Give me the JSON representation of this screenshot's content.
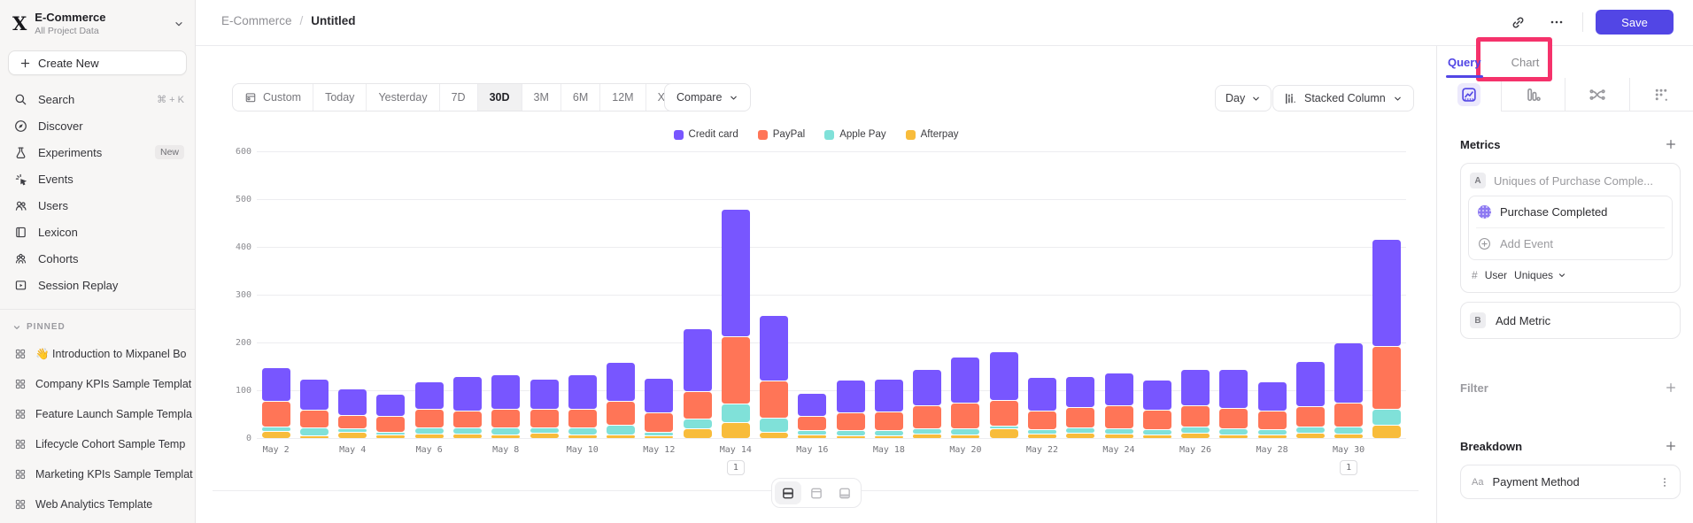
{
  "colors": {
    "accent": "#5246E5",
    "annotation_pink": "#F5326B",
    "save_button": "#5246E5"
  },
  "sidebar": {
    "project": {
      "name": "E-Commerce",
      "subtitle": "All Project Data",
      "logo_icon": "mixpanel-logo"
    },
    "create_new_label": "Create New",
    "nav": [
      {
        "label": "Search",
        "icon": "search-icon",
        "shortcut": "⌘ + K"
      },
      {
        "label": "Discover",
        "icon": "discover-icon"
      },
      {
        "label": "Experiments",
        "icon": "experiments-icon",
        "badge": "New"
      },
      {
        "label": "Events",
        "icon": "events-icon"
      },
      {
        "label": "Users",
        "icon": "users-icon"
      },
      {
        "label": "Lexicon",
        "icon": "lexicon-icon"
      },
      {
        "label": "Cohorts",
        "icon": "cohorts-icon"
      },
      {
        "label": "Session Replay",
        "icon": "session-replay-icon"
      }
    ],
    "pinned": {
      "header": "PINNED",
      "items": [
        {
          "label": "👋 Introduction to Mixpanel Bo",
          "icon": "board-grid-icon"
        },
        {
          "label": "Company KPIs Sample Templat",
          "icon": "board-grid-icon"
        },
        {
          "label": "Feature Launch Sample Templa",
          "icon": "board-grid-icon"
        },
        {
          "label": "Lifecycle Cohort Sample Temp",
          "icon": "board-grid-icon"
        },
        {
          "label": "Marketing KPIs Sample Templat",
          "icon": "board-grid-icon"
        },
        {
          "label": "Web Analytics Template",
          "icon": "board-grid-icon"
        }
      ]
    }
  },
  "header": {
    "breadcrumb": {
      "root": "E-Commerce",
      "separator": "/",
      "current": "Untitled"
    },
    "actions": {
      "link_icon": "copy-link-icon",
      "more_icon": "ellipsis-icon",
      "save_label": "Save"
    }
  },
  "toolbar": {
    "ranges": [
      {
        "label": "Custom",
        "icon": "calendar-icon"
      },
      {
        "label": "Today"
      },
      {
        "label": "Yesterday"
      },
      {
        "label": "7D"
      },
      {
        "label": "30D",
        "active": true
      },
      {
        "label": "3M"
      },
      {
        "label": "6M"
      },
      {
        "label": "12M"
      },
      {
        "label": "XTD",
        "chevron": true
      }
    ],
    "compare_label": "Compare",
    "granularity_label": "Day",
    "chart_type_label": "Stacked Column",
    "chart_type_icon": "stacked-column-icon"
  },
  "right_panel": {
    "tabs": {
      "query": "Query",
      "chart": "Chart"
    },
    "metrics": {
      "title": "Metrics",
      "row_a": {
        "chip": "A",
        "placeholder": "Uniques of Purchase Comple..."
      },
      "event_name": "Purchase Completed",
      "add_event_label": "Add Event",
      "aggregation": {
        "hash": "#",
        "entity": "User",
        "method": "Uniques"
      },
      "row_b": {
        "chip": "B",
        "label": "Add Metric"
      }
    },
    "filter": {
      "title": "Filter"
    },
    "breakdown": {
      "title": "Breakdown",
      "property": {
        "prefix": "Aa",
        "name": "Payment Method"
      }
    }
  },
  "chart_data": {
    "type": "bar",
    "stacked": true,
    "x": [
      "May 2",
      "May 3",
      "May 4",
      "May 5",
      "May 6",
      "May 7",
      "May 8",
      "May 9",
      "May 10",
      "May 11",
      "May 12",
      "May 13",
      "May 14",
      "May 15",
      "May 16",
      "May 17",
      "May 18",
      "May 19",
      "May 20",
      "May 21",
      "May 22",
      "May 23",
      "May 24",
      "May 25",
      "May 26",
      "May 27",
      "May 28",
      "May 29",
      "May 30",
      "May 31"
    ],
    "series": [
      {
        "name": "Afterpay",
        "color": "#F8BC3B",
        "values": [
          15,
          6,
          13,
          8,
          10,
          10,
          8,
          12,
          7,
          8,
          5,
          20,
          33,
          13,
          8,
          6,
          5,
          10,
          8,
          20,
          10,
          12,
          10,
          8,
          12,
          8,
          8,
          12,
          10,
          28
        ]
      },
      {
        "name": "Apple Pay",
        "color": "#80E1D9",
        "values": [
          10,
          16,
          8,
          5,
          12,
          13,
          15,
          10,
          15,
          20,
          7,
          20,
          40,
          29,
          8,
          10,
          12,
          10,
          12,
          6,
          8,
          10,
          10,
          10,
          12,
          12,
          10,
          12,
          15,
          34
        ]
      },
      {
        "name": "PayPal",
        "color": "#FF7557",
        "values": [
          53,
          38,
          27,
          32,
          40,
          34,
          39,
          40,
          40,
          49,
          41,
          58,
          140,
          78,
          30,
          38,
          38,
          48,
          55,
          54,
          40,
          43,
          48,
          42,
          44,
          43,
          39,
          42,
          50,
          131
        ]
      },
      {
        "name": "Credit card",
        "color": "#7856FF",
        "values": [
          70,
          65,
          55,
          47,
          57,
          72,
          71,
          63,
          71,
          83,
          72,
          132,
          267,
          138,
          49,
          68,
          68,
          76,
          95,
          101,
          69,
          65,
          69,
          62,
          76,
          81,
          62,
          95,
          125,
          224
        ]
      }
    ],
    "legend_position": "top",
    "ylim": [
      0,
      600
    ],
    "yticks": [
      0,
      100,
      200,
      300,
      400,
      500,
      600
    ],
    "xtick_every": 2,
    "annotations": [
      {
        "x": "May 14",
        "label": "1"
      },
      {
        "x": "May 30",
        "label": "1"
      }
    ]
  }
}
